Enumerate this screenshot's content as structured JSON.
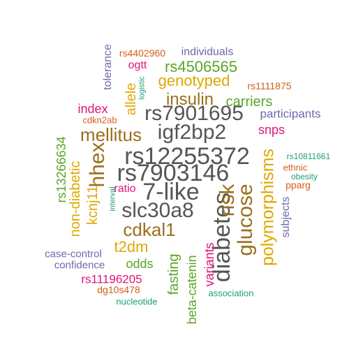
{
  "words": {
    "rs12255372": "rs12255372",
    "rs7903146": "rs7903146",
    "7_like": "7-like",
    "slc30a8": "slc30a8",
    "igf2bp2": "igf2bp2",
    "rs7901695": "rs7901695",
    "diabetes": "diabetes",
    "glucose": "glucose",
    "risk": "risk",
    "polymorphisms": "polymorphisms",
    "hhex": "hhex",
    "mellitus": "mellitus",
    "cdkal1": "cdkal1",
    "insulin": "insulin",
    "genotyped": "genotyped",
    "t2dm": "t2dm",
    "rs4506565": "rs4506565",
    "carriers": "carriers",
    "allele": "allele",
    "kcnj11": "kcnj11",
    "non_diabetic": "non-diabetic",
    "fasting": "fasting",
    "beta_catenin": "beta-catenin",
    "variants": "variants",
    "odds": "odds",
    "rs13266634": "rs13266634",
    "index": "index",
    "snps": "snps",
    "participants": "participants",
    "rs11196205": "rs11196205",
    "subjects": "subjects",
    "ratio": "ratio",
    "individuals": "individuals",
    "ogtt": "ogtt",
    "tolerance": "tolerance",
    "case_control": "case-control",
    "confidence": "confidence",
    "rs4402960": "rs4402960",
    "rs1111875": "rs1111875",
    "dg10s478": "dg10s478",
    "cdkn2ab": "cdkn2ab",
    "pparg": "pparg",
    "ethnic": "ethnic",
    "rs10811661": "rs10811661",
    "obesity": "obesity",
    "nucleotide": "nucleotide",
    "association": "association",
    "logistic": "logistic",
    "interval": "interval"
  },
  "colors": {
    "gray": "#555555",
    "brown": "#9a6f1b",
    "gold": "#e0a800",
    "green": "#5aa629",
    "pink": "#e0157a",
    "purple": "#6b6aad",
    "orange": "#d35f1a",
    "teal": "#1b9e77"
  }
}
